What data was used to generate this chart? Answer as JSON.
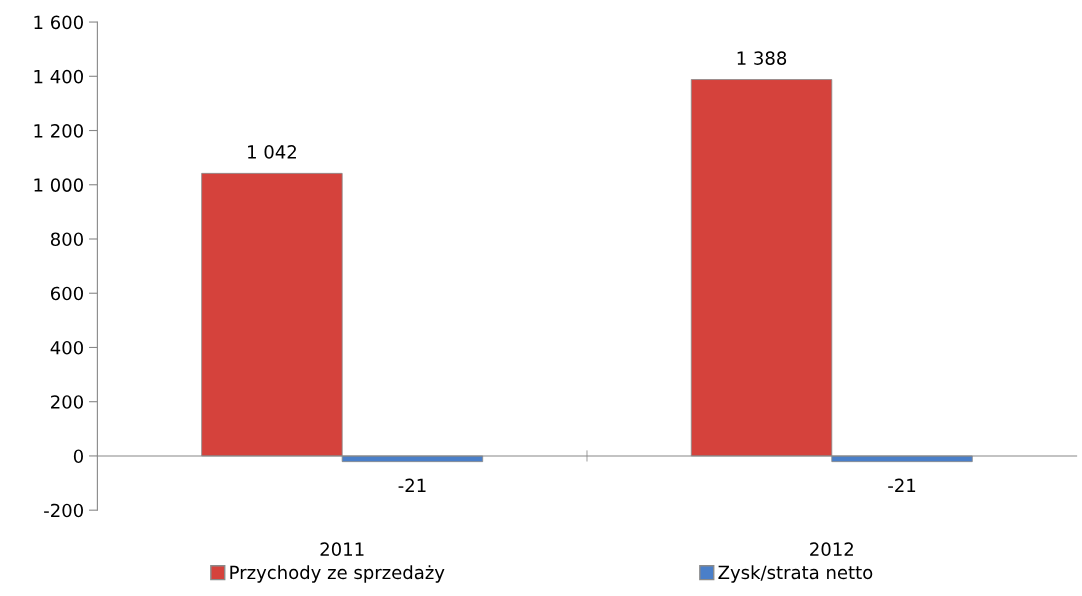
{
  "chart_data": {
    "type": "bar",
    "categories": [
      "2011",
      "2012"
    ],
    "series": [
      {
        "name": "Przychody ze sprzedaży",
        "color": "#d5423c",
        "values": [
          1042,
          1388
        ],
        "value_labels": [
          "1 042",
          "1 388"
        ]
      },
      {
        "name": "Zysk/strata netto",
        "color": "#4a7fc9",
        "values": [
          -21,
          -21
        ],
        "value_labels": [
          "-21",
          "-21"
        ]
      }
    ],
    "ylim": [
      -200,
      1600
    ],
    "yticks": [
      {
        "value": -200,
        "label": "-200"
      },
      0,
      200,
      400,
      600,
      800,
      {
        "value": 1000,
        "label": "1 000"
      },
      {
        "value": 1200,
        "label": "1 200"
      },
      {
        "value": 1400,
        "label": "1 400"
      },
      {
        "value": 1600,
        "label": "1 600"
      }
    ],
    "legend": "bottom"
  }
}
